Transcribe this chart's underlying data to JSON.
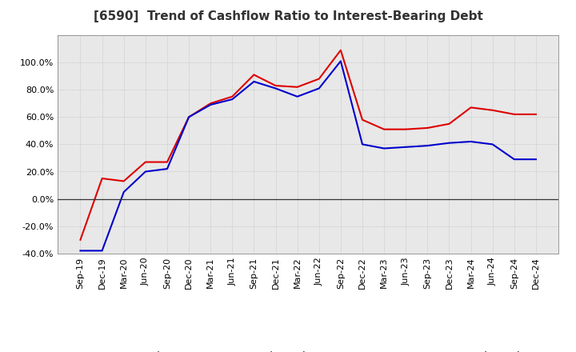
{
  "title": "[6590]  Trend of Cashflow Ratio to Interest-Bearing Debt",
  "x_labels": [
    "Sep-19",
    "Dec-19",
    "Mar-20",
    "Jun-20",
    "Sep-20",
    "Dec-20",
    "Mar-21",
    "Jun-21",
    "Sep-21",
    "Dec-21",
    "Mar-22",
    "Jun-22",
    "Sep-22",
    "Dec-22",
    "Mar-23",
    "Jun-23",
    "Sep-23",
    "Dec-23",
    "Mar-24",
    "Jun-24",
    "Sep-24",
    "Dec-24"
  ],
  "operating_cf": [
    -30.0,
    15.0,
    13.0,
    27.0,
    27.0,
    60.0,
    70.0,
    75.0,
    91.0,
    83.0,
    82.0,
    88.0,
    109.0,
    58.0,
    51.0,
    51.0,
    52.0,
    55.0,
    67.0,
    65.0,
    62.0,
    62.0
  ],
  "free_cf": [
    -38.0,
    -38.0,
    5.0,
    20.0,
    22.0,
    60.0,
    69.0,
    73.0,
    86.0,
    81.0,
    75.0,
    81.0,
    101.0,
    40.0,
    37.0,
    38.0,
    39.0,
    41.0,
    42.0,
    40.0,
    29.0,
    29.0
  ],
  "operating_cf_color": "#dd0000",
  "free_cf_color": "#0000cc",
  "background_color": "#ffffff",
  "plot_bg_color": "#e8e8e8",
  "grid_color": "#bbbbbb",
  "ylim_min": -40,
  "ylim_max": 120,
  "yticks": [
    -40,
    -20,
    0,
    20,
    40,
    60,
    80,
    100
  ],
  "legend_operating": "Operating CF to Interest-Bearing Debt",
  "legend_free": "Free CF to Interest-Bearing Debt",
  "title_fontsize": 11,
  "tick_fontsize": 8,
  "legend_fontsize": 9
}
